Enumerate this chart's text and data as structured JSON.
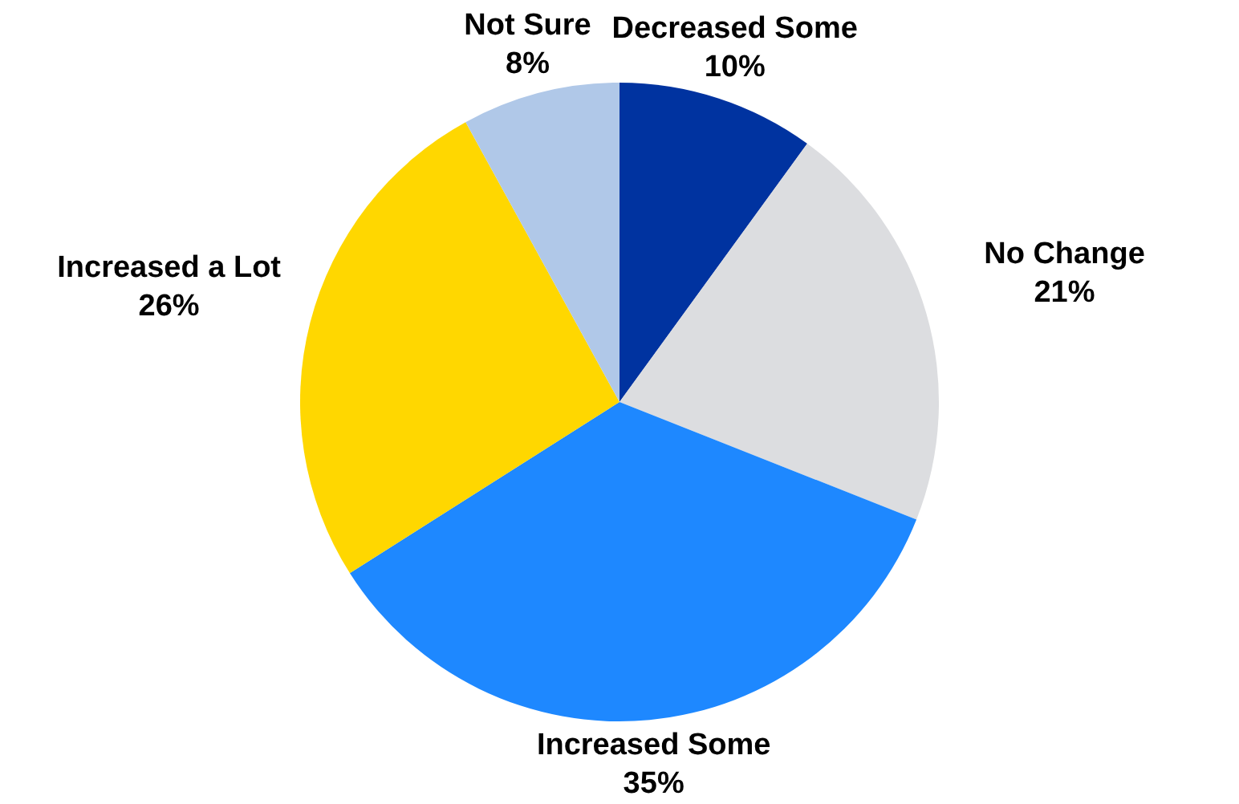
{
  "chart_data": {
    "type": "pie",
    "categories": [
      "Decreased Some",
      "No Change",
      "Increased Some",
      "Increased a Lot",
      "Not Sure"
    ],
    "values": [
      10,
      21,
      35,
      26,
      8
    ],
    "colors": [
      "#0033a0",
      "#dcdde0",
      "#1e88ff",
      "#ffd700",
      "#b0c8e8"
    ],
    "value_labels": [
      "10%",
      "21%",
      "35%",
      "26%",
      "8%"
    ]
  }
}
